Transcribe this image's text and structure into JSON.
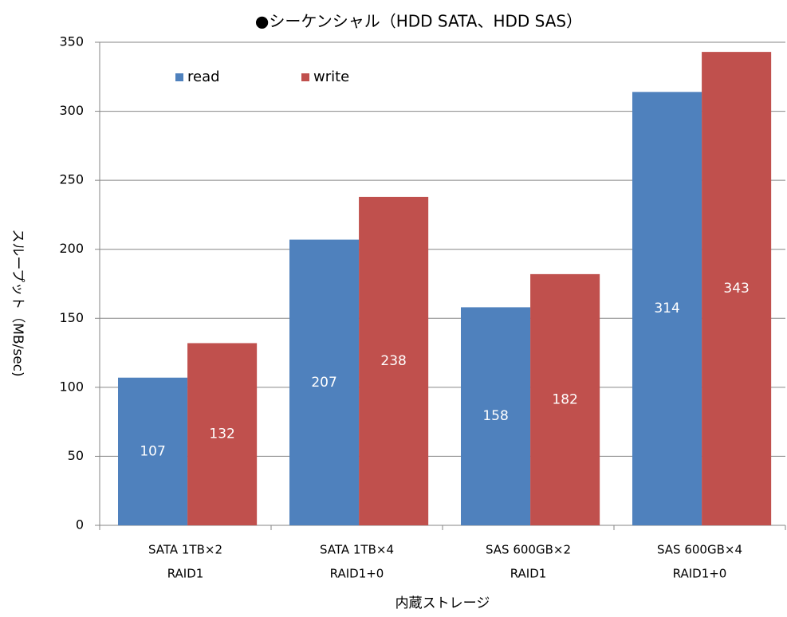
{
  "chart_data": {
    "type": "bar",
    "title": "●シーケンシャル（HDD SATA、HDD SAS）",
    "x_label": "内蔵ストレージ",
    "y_label": "スループット（MB/sec)",
    "categories": [
      [
        "SATA 1TB×2",
        "RAID1"
      ],
      [
        "SATA 1TB×4",
        "RAID1+0"
      ],
      [
        "SAS 600GB×2",
        "RAID1"
      ],
      [
        "SAS 600GB×4",
        "RAID1+0"
      ]
    ],
    "series": [
      {
        "name": "read",
        "color": "#4f81bd",
        "values": [
          107,
          207,
          158,
          314
        ]
      },
      {
        "name": "write",
        "color": "#c0504d",
        "values": [
          132,
          238,
          182,
          343
        ]
      }
    ],
    "ylim": [
      0,
      350
    ],
    "yticks": [
      0,
      50,
      100,
      150,
      200,
      250,
      300,
      350
    ],
    "grid": true,
    "legend": "top-left"
  }
}
